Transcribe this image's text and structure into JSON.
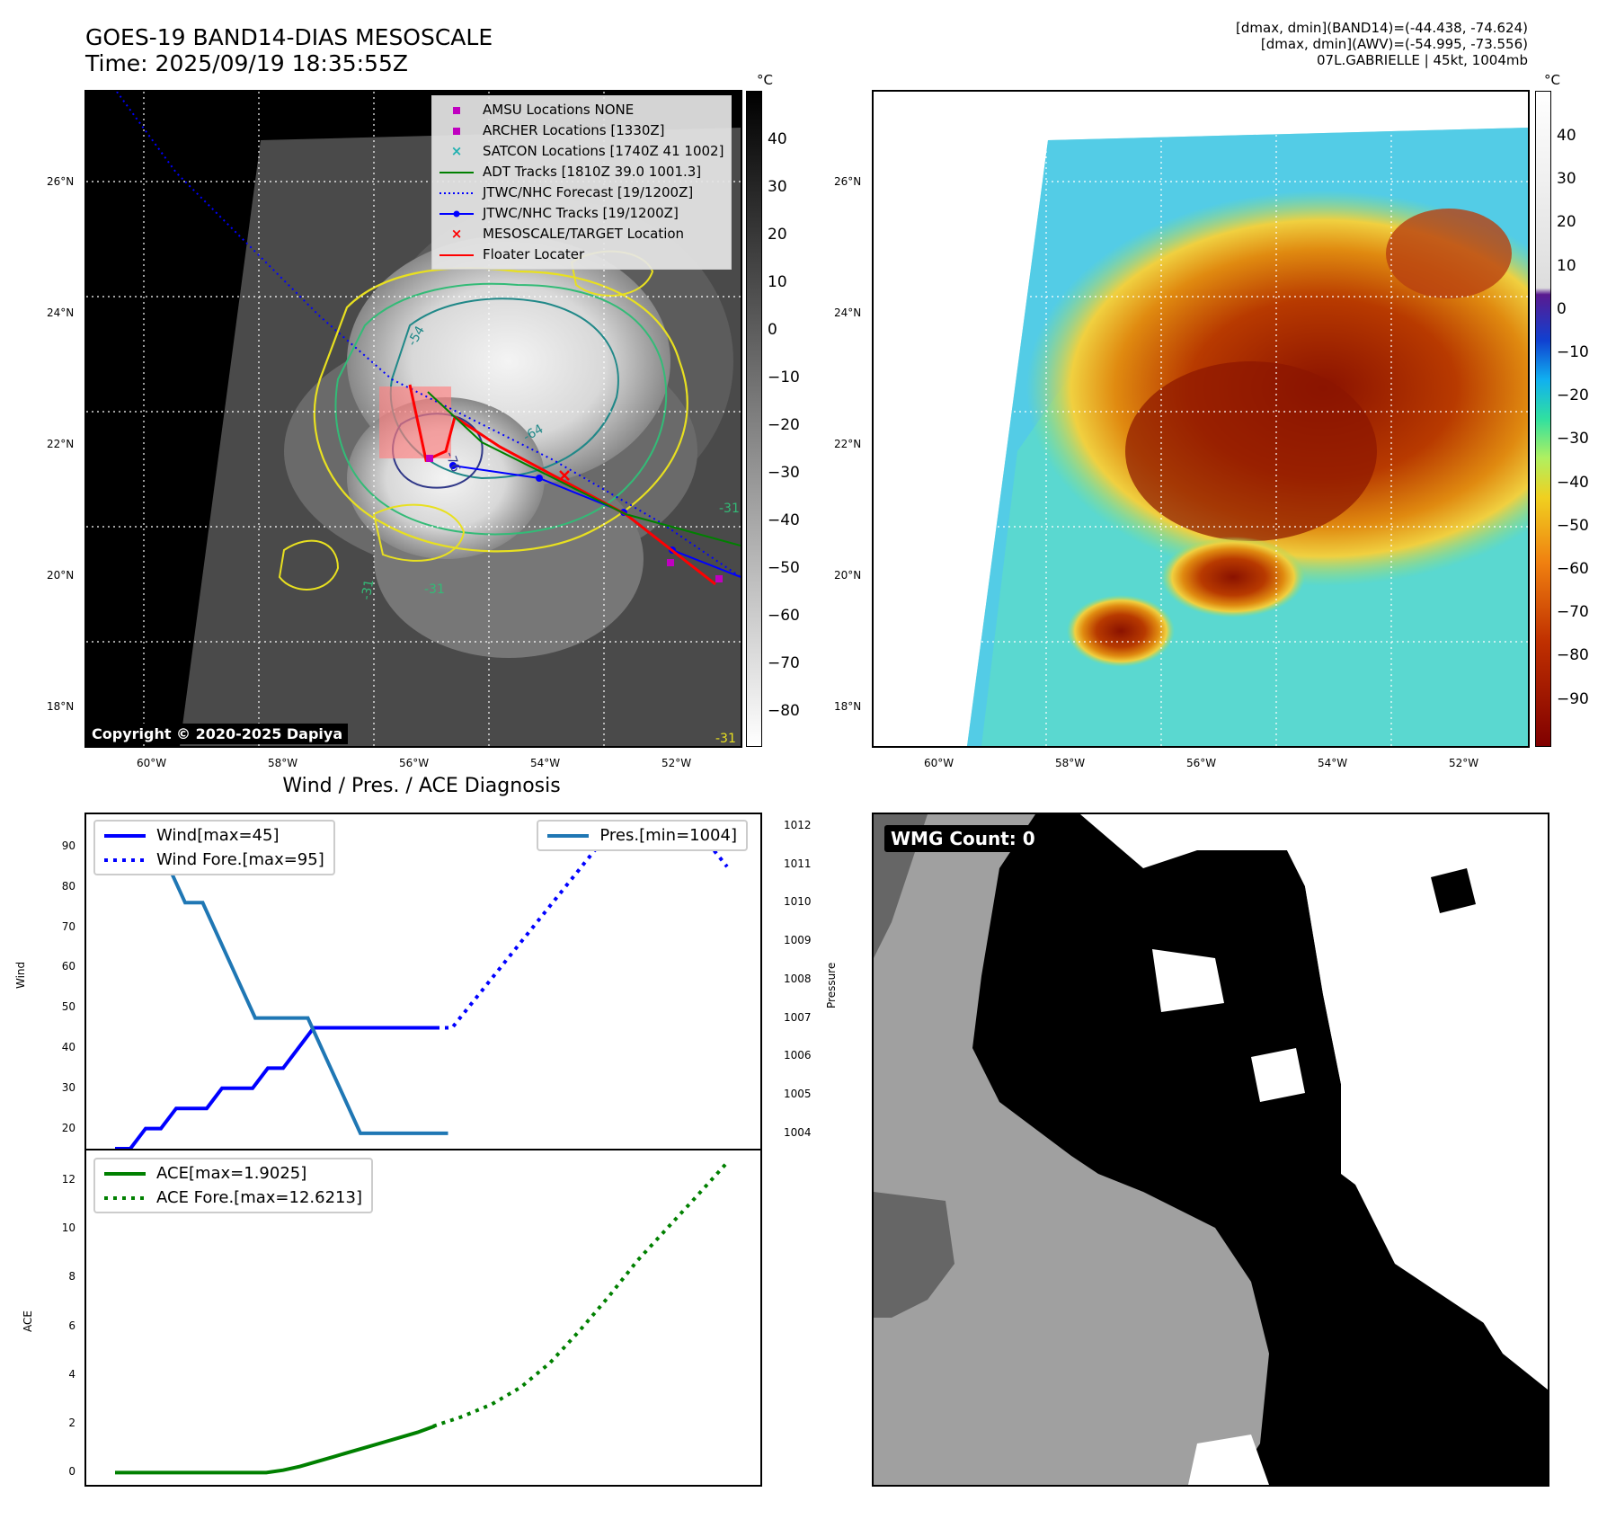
{
  "header": {
    "title_line1": "GOES-19 BAND14-DIAS MESOSCALE",
    "title_line2": "Time: 2025/09/19 18:35:55Z",
    "info_line1": "[dmax, dmin](BAND14)=(-44.438, -74.624)",
    "info_line2": "[dmax, dmin](AWV)=(-54.995, -73.556)",
    "info_line3": "07L.GABRIELLE | 45kt, 1004mb"
  },
  "map_axes": {
    "lat_labels": [
      "26°N",
      "24°N",
      "22°N",
      "20°N",
      "18°N"
    ],
    "lon_labels": [
      "60°W",
      "58°W",
      "56°W",
      "54°W",
      "52°W"
    ]
  },
  "ir_colorbar": {
    "unit": "°C",
    "ticks": [
      "40",
      "30",
      "20",
      "10",
      "0",
      "−10",
      "−20",
      "−30",
      "−40",
      "−50",
      "−60",
      "−70",
      "−80"
    ]
  },
  "awv_colorbar": {
    "unit": "°C",
    "ticks": [
      "40",
      "30",
      "20",
      "10",
      "0",
      "−10",
      "−20",
      "−30",
      "−40",
      "−50",
      "−60",
      "−70",
      "−80",
      "−90"
    ]
  },
  "map_legend": [
    {
      "label": "AMSU Locations NONE",
      "symbol": "square",
      "color": "#c000c0"
    },
    {
      "label": "ARCHER Locations [1330Z]",
      "symbol": "square",
      "color": "#c000c0"
    },
    {
      "label": "SATCON Locations [1740Z 41 1002]",
      "symbol": "x",
      "color": "#20b0b0"
    },
    {
      "label": "ADT Tracks [1810Z 39.0 1001.3]",
      "symbol": "line",
      "color": "#008000"
    },
    {
      "label": "JTWC/NHC Forecast [19/1200Z]",
      "symbol": "dotted",
      "color": "#0000ff"
    },
    {
      "label": "JTWC/NHC Tracks [19/1200Z]",
      "symbol": "dotline",
      "color": "#0000ff"
    },
    {
      "label": "MESOSCALE/TARGET Location",
      "symbol": "x",
      "color": "#ff0000"
    },
    {
      "label": "Floater Locater",
      "symbol": "line",
      "color": "#ff0000"
    }
  ],
  "contour_labels": [
    "-54",
    "-64",
    "-76",
    "-31",
    "-31",
    "-31",
    "-31"
  ],
  "copyright": "Copyright © 2020-2025 Dapiya",
  "diag": {
    "title": "Wind / Pres. / ACE Diagnosis",
    "wind_axis_label": "Wind",
    "pressure_axis_label": "Pressure",
    "ace_axis_label": "ACE",
    "wind_ticks": [
      "90",
      "80",
      "70",
      "60",
      "50",
      "40",
      "30",
      "20"
    ],
    "pressure_ticks": [
      "1012",
      "1011",
      "1010",
      "1009",
      "1008",
      "1007",
      "1006",
      "1005",
      "1004"
    ],
    "ace_ticks": [
      "12",
      "10",
      "8",
      "6",
      "4",
      "2",
      "0"
    ],
    "legend_wind": "Wind[max=45]",
    "legend_wind_fore": "Wind Fore.[max=95]",
    "legend_pres": "Pres.[min=1004]",
    "legend_ace": "ACE[max=1.9025]",
    "legend_ace_fore": "ACE Fore.[max=12.6213]"
  },
  "chart_data": {
    "type": "line",
    "title": "Wind / Pres. / ACE Diagnosis",
    "wind": {
      "name": "Wind",
      "values": [
        15,
        15,
        20,
        20,
        25,
        25,
        25,
        30,
        30,
        30,
        35,
        35,
        40,
        45,
        45,
        45,
        45,
        45,
        45,
        45,
        45,
        45
      ],
      "ylim": [
        15,
        98
      ]
    },
    "wind_fore": {
      "name": "Wind Fore.",
      "values": [
        45,
        45,
        50,
        55,
        60,
        65,
        70,
        75,
        80,
        85,
        90,
        95,
        95,
        95,
        95,
        90,
        90,
        90,
        85
      ],
      "ylim": [
        15,
        98
      ]
    },
    "pressure": {
      "name": "Pres.",
      "values": [
        1012.0,
        1012.0,
        1011.0,
        1011.0,
        1010.0,
        1010.0,
        1009.0,
        1008.0,
        1007.0,
        1007.0,
        1007.0,
        1007.0,
        1006.0,
        1005.0,
        1004.0,
        1004.0,
        1004.0,
        1004.0,
        1004.0,
        1004.0
      ],
      "ylim": [
        1003.6,
        1012.3
      ]
    },
    "ace": {
      "name": "ACE",
      "values": [
        0,
        0,
        0,
        0,
        0,
        0,
        0,
        0,
        0,
        0,
        0.1,
        0.25,
        0.45,
        0.65,
        0.85,
        1.05,
        1.25,
        1.45,
        1.65,
        1.9025
      ],
      "ylim": [
        -0.5,
        13.2
      ]
    },
    "ace_fore": {
      "name": "ACE Fore.",
      "values": [
        1.9,
        2.3,
        2.8,
        3.5,
        4.5,
        5.8,
        7.2,
        8.7,
        10.0,
        11.3,
        12.6213
      ],
      "ylim": [
        -0.5,
        13.2
      ]
    }
  },
  "wmg": {
    "label": "WMG Count: 0"
  }
}
